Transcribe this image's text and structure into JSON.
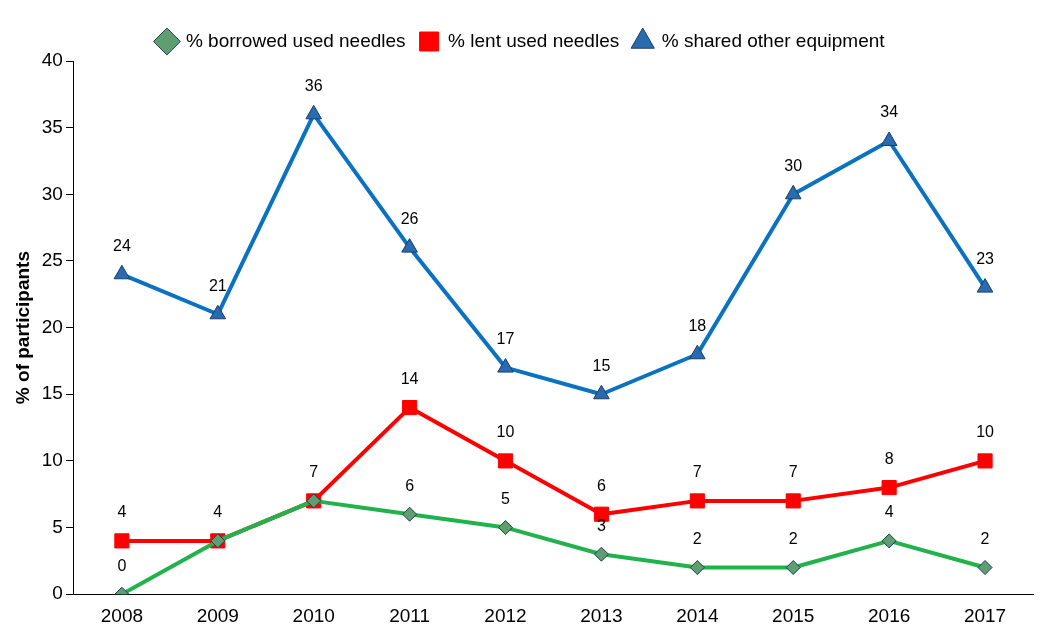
{
  "chart_data": {
    "type": "line",
    "ylabel": "% of participants",
    "categories": [
      "2008",
      "2009",
      "2010",
      "2011",
      "2012",
      "2013",
      "2014",
      "2015",
      "2016",
      "2017"
    ],
    "series": [
      {
        "name": "% borrowed used needles",
        "color": "#21b24b",
        "marker": "diamond",
        "values": [
          0,
          4,
          7,
          6,
          5,
          3,
          2,
          2,
          4,
          2
        ]
      },
      {
        "name": "% lent used needles",
        "color": "#ff0000",
        "marker": "square",
        "values": [
          4,
          4,
          7,
          14,
          10,
          6,
          7,
          7,
          8,
          10
        ],
        "value_labels": [
          "4",
          null,
          null,
          "14",
          "10",
          "6",
          "7",
          "7",
          "8",
          "10"
        ]
      },
      {
        "name": "% shared other equipment",
        "color": "#0a72c0",
        "marker": "triangle",
        "values": [
          24,
          21,
          36,
          26,
          17,
          15,
          18,
          30,
          34,
          23
        ]
      }
    ],
    "ylim": [
      0,
      40
    ],
    "yticks": [
      0,
      5,
      10,
      15,
      20,
      25,
      30,
      35,
      40
    ],
    "grid": false,
    "legend": "top",
    "data_labels": true
  }
}
